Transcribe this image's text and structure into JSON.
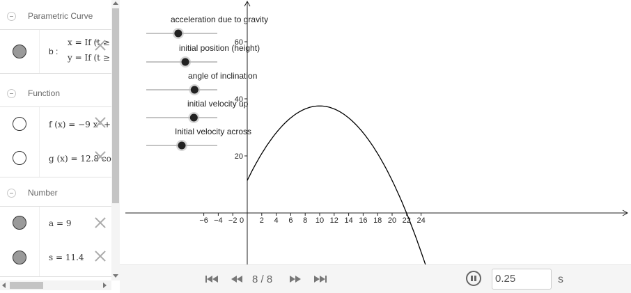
{
  "algebra": {
    "categories": [
      {
        "label": "Parametric Curve",
        "items": [
          {
            "name": "b :",
            "line1": "x = If (t ≥",
            "line2": "y = If (t ≥",
            "marble": "filled"
          }
        ]
      },
      {
        "label": "Function",
        "items": [
          {
            "expr": "f (x)  =  −9 x² +",
            "marble": "empty"
          },
          {
            "expr": "g (x)  =  12.8 co",
            "marble": "empty"
          }
        ]
      },
      {
        "label": "Number",
        "items": [
          {
            "expr": "a = 9",
            "marble": "filled"
          },
          {
            "expr": "s = 11.4",
            "marble": "filled"
          }
        ]
      }
    ]
  },
  "graphics": {
    "sliders": [
      {
        "label": "acceleration due to gravity",
        "value_fraction": 0.45
      },
      {
        "label": "initial position (height)",
        "value_fraction": 0.55
      },
      {
        "label": "angle of inclination",
        "value_fraction": 0.68
      },
      {
        "label": "initial velocity up",
        "value_fraction": 0.67
      },
      {
        "label": "Initial velocity across",
        "value_fraction": 0.5
      }
    ],
    "axes": {
      "x_ticks": [
        "−6",
        "−4",
        "−2",
        "0",
        "2",
        "4",
        "6",
        "8",
        "10",
        "12",
        "14",
        "16",
        "18",
        "20",
        "22",
        "24"
      ],
      "y_ticks": [
        "20",
        "40",
        "60"
      ]
    }
  },
  "player": {
    "frame": "8 / 8",
    "speed": "0.25",
    "unit": "s"
  },
  "colors": {
    "curve": "#000000",
    "marble_filled": "#9a9a9a",
    "slider_point": "#222222"
  }
}
